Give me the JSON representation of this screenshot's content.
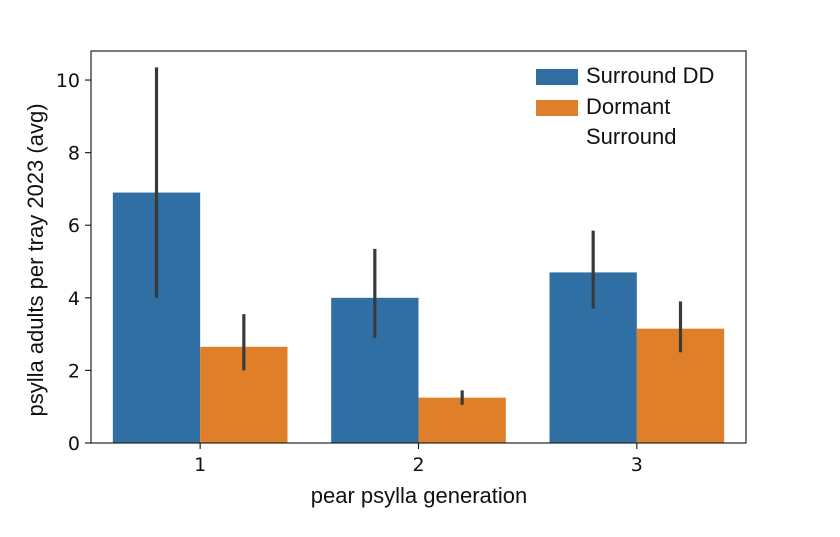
{
  "chart_data": {
    "type": "bar",
    "title": "",
    "xlabel": "pear psylla generation",
    "ylabel": "psylla adults per tray 2023 (avg)",
    "categories": [
      "1",
      "2",
      "3"
    ],
    "ylim": [
      0,
      10.8
    ],
    "yticks": [
      0,
      2,
      4,
      6,
      8,
      10
    ],
    "ytick_labels": [
      "0",
      "2",
      "4",
      "6",
      "8",
      "10"
    ],
    "legend_position": "top-right",
    "series": [
      {
        "name": "Surround DD",
        "color": "#2f6fa3",
        "values": [
          6.9,
          4.0,
          4.7
        ],
        "err_low": [
          4.0,
          2.9,
          3.7
        ],
        "err_high": [
          10.35,
          5.35,
          5.85
        ]
      },
      {
        "name": "Dormant Surround",
        "name_lines": [
          "Dormant",
          "Surround"
        ],
        "color": "#e07f2a",
        "values": [
          2.65,
          1.25,
          3.15
        ],
        "err_low": [
          2.0,
          1.05,
          2.5
        ],
        "err_high": [
          3.55,
          1.45,
          3.9
        ]
      }
    ]
  }
}
